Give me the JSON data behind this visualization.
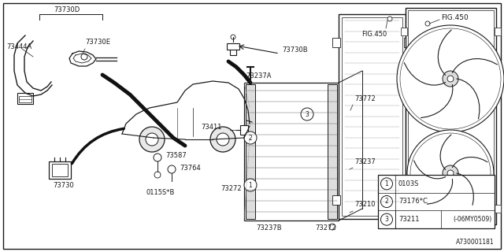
{
  "background_color": "#ffffff",
  "line_color": "#1a1a1a",
  "part_number": "A730001181",
  "fig_width": 6.4,
  "fig_height": 3.2,
  "dpi": 100,
  "legend_entries": [
    {
      "num": "1",
      "code": "0103S",
      "extra": ""
    },
    {
      "num": "2",
      "code": "73176*C",
      "extra": ""
    },
    {
      "num": "3",
      "code": "73211",
      "extra": "(-06MY0509)"
    }
  ]
}
